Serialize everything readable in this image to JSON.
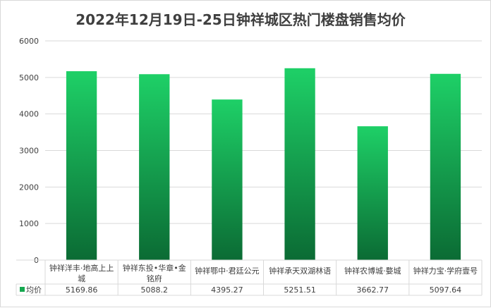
{
  "chart_data": {
    "type": "bar",
    "title": "2022年12月19日-25日钟祥城区热门楼盘销售均价",
    "categories": [
      "钟祥洋丰·地高上上城",
      "钟祥东投•华章•金铭府",
      "钟祥鄂中·君廷公元",
      "钟祥承天双湖林语",
      "钟祥农博城·婺城",
      "钟祥力宝·学府壹号"
    ],
    "category_lines": [
      [
        "钟祥洋丰·地高上上",
        "城"
      ],
      [
        "钟祥东投•华章•金",
        "铭府"
      ],
      [
        "钟祥鄂中·君廷公元"
      ],
      [
        "钟祥承天双湖林语"
      ],
      [
        "钟祥农博城·婺城"
      ],
      [
        "钟祥力宝·学府壹号"
      ]
    ],
    "series": [
      {
        "name": "均价",
        "values": [
          5169.86,
          5088.2,
          4395.27,
          5251.51,
          3662.77,
          5097.64
        ],
        "value_labels": [
          "5169.86",
          "5088.2",
          "4395.27",
          "5251.51",
          "3662.77",
          "5097.64"
        ]
      }
    ],
    "ylim": [
      0,
      6000
    ],
    "yticks": [
      0,
      1000,
      2000,
      3000,
      4000,
      5000,
      6000
    ],
    "grid": true,
    "legend": "data-table",
    "colors": {
      "bar_top": "#1ed067",
      "bar_bottom": "#0b6b34",
      "grid": "#d9d9d9",
      "text": "#404040",
      "title": "#3f3f3f",
      "legend_key": "#15a84f"
    }
  }
}
